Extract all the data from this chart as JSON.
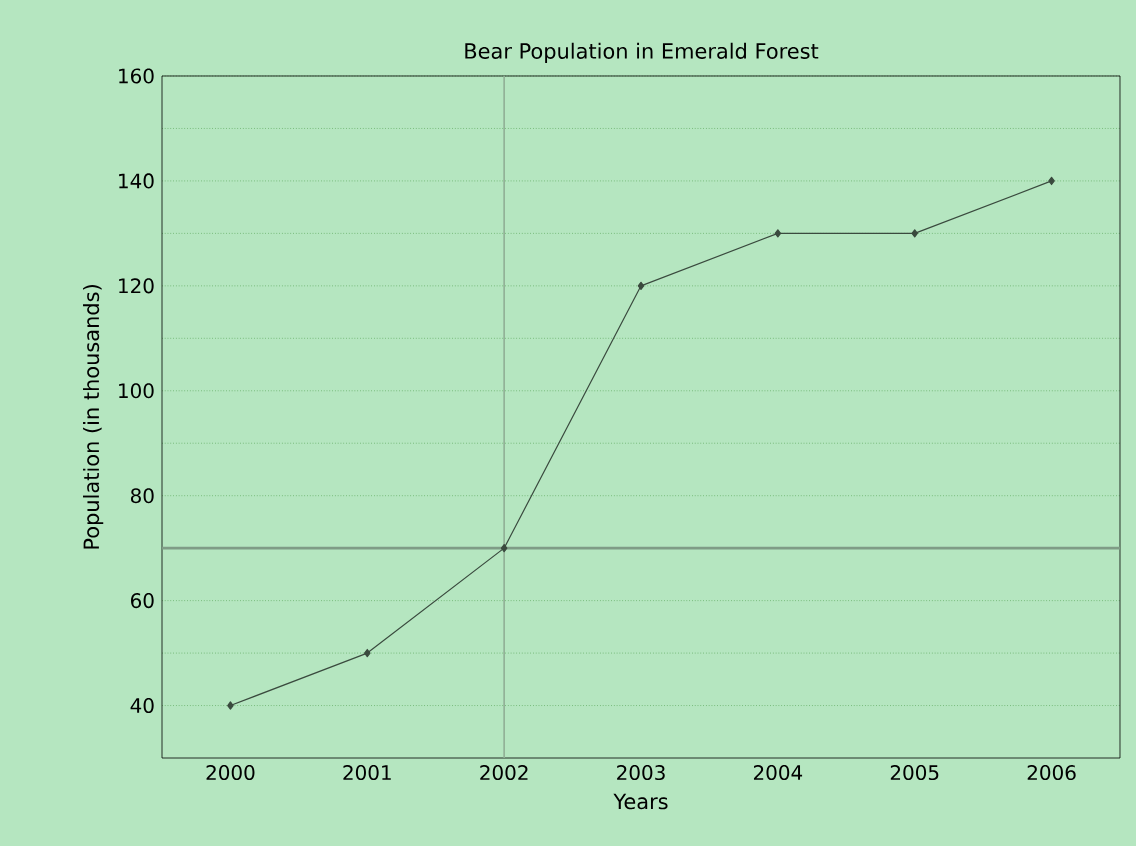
{
  "chart_data": {
    "type": "line",
    "title": "Bear Population in Emerald Forest",
    "xlabel": "Years",
    "ylabel": "Population (in thousands)",
    "x": [
      2000,
      2001,
      2002,
      2003,
      2004,
      2005,
      2006
    ],
    "series": [
      {
        "color": "#3a4a3e",
        "values": [
          40,
          50,
          70,
          120,
          130,
          130,
          140
        ]
      }
    ],
    "xlim": [
      1999.5,
      2006.5
    ],
    "xticks": [
      2000,
      2001,
      2002,
      2003,
      2004,
      2005,
      2006
    ],
    "ylim": [
      30,
      160
    ],
    "yticks": [
      40,
      {
        "value": 50,
        "label": null
      },
      60,
      {
        "value": 70,
        "label": null
      },
      80,
      {
        "value": 90,
        "label": null
      },
      100,
      {
        "value": 110,
        "label": null
      },
      120,
      {
        "value": 130,
        "label": null
      },
      140,
      {
        "value": 150,
        "label": null
      },
      160
    ],
    "grid": "y",
    "marker": "diamond",
    "line_style": "solid",
    "ref_lines": [
      {
        "axis": "y",
        "value": 70,
        "color": "#7f9c86"
      },
      {
        "axis": "x",
        "value": 2002,
        "color": "#8fae95"
      }
    ]
  }
}
